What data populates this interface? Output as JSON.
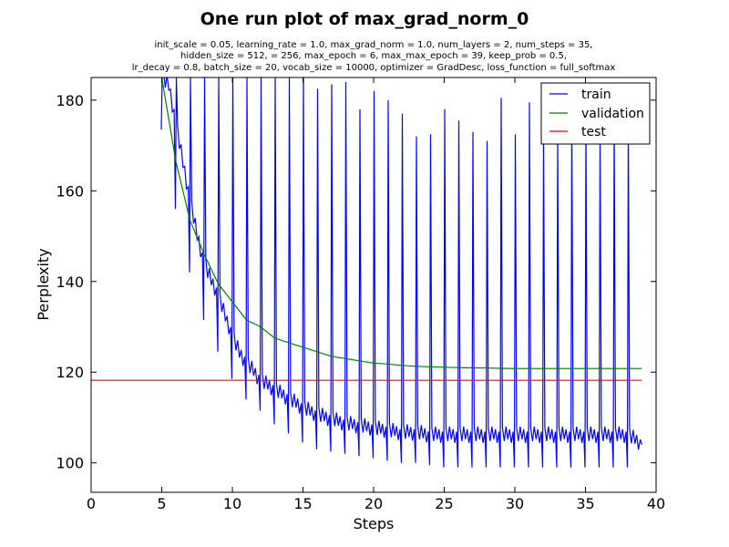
{
  "chart_data": {
    "type": "line",
    "title": "One run plot of max_grad_norm_0",
    "subtitle_lines": [
      "init_scale = 0.05, learning_rate = 1.0, max_grad_norm = 1.0, num_layers = 2, num_steps = 35,",
      "hidden_size = 512,    = 256, max_epoch = 6, max_max_epoch = 39, keep_prob = 0.5,",
      "lr_decay = 0.8, batch_size = 20, vocab_size = 10000, optimizer = GradDesc, loss_function = full_softmax"
    ],
    "xlabel": "Steps",
    "ylabel": "Perplexity",
    "xlim": [
      0,
      40
    ],
    "ylim": [
      93.5,
      185
    ],
    "xticks": [
      0,
      5,
      10,
      15,
      20,
      25,
      30,
      35,
      40
    ],
    "yticks": [
      100,
      120,
      140,
      160,
      180
    ],
    "grid": false,
    "legend_position": "top-right",
    "series": [
      {
        "name": "train",
        "color": "#0000ff",
        "epoch_spike_peaks": [
          [
            5,
            185
          ],
          [
            6,
            185
          ],
          [
            7,
            185
          ],
          [
            8,
            185
          ],
          [
            9,
            185
          ],
          [
            10,
            185
          ],
          [
            11,
            185
          ],
          [
            12,
            185
          ],
          [
            13,
            185
          ],
          [
            14,
            185
          ],
          [
            15,
            185
          ],
          [
            16,
            182.5
          ],
          [
            17,
            183.5
          ],
          [
            18,
            184
          ],
          [
            19,
            178
          ],
          [
            20,
            182
          ],
          [
            21,
            180
          ],
          [
            22,
            177
          ],
          [
            23,
            172
          ],
          [
            24,
            172.5
          ],
          [
            25,
            178
          ],
          [
            26,
            175.5
          ],
          [
            27,
            173
          ],
          [
            28,
            171
          ],
          [
            29,
            180.5
          ],
          [
            30,
            172.5
          ],
          [
            31,
            179.5
          ],
          [
            32,
            172.5
          ],
          [
            33,
            172
          ],
          [
            34,
            176
          ],
          [
            35,
            175
          ],
          [
            36,
            173.5
          ],
          [
            37,
            175.5
          ],
          [
            38,
            175
          ]
        ],
        "epoch_lows": [
          [
            5,
            173.5
          ],
          [
            6,
            156
          ],
          [
            7,
            142
          ],
          [
            8,
            131.5
          ],
          [
            9,
            124.5
          ],
          [
            10,
            118.5
          ],
          [
            11,
            114
          ],
          [
            12,
            111.5
          ],
          [
            13,
            108.5
          ],
          [
            14,
            106.5
          ],
          [
            15,
            104.5
          ],
          [
            16,
            103
          ],
          [
            17,
            102.5
          ],
          [
            18,
            102
          ],
          [
            19,
            101.5
          ],
          [
            20,
            101
          ],
          [
            21,
            100.5
          ],
          [
            22,
            100
          ],
          [
            23,
            100
          ],
          [
            24,
            99.5
          ],
          [
            25,
            99
          ],
          [
            26,
            99
          ],
          [
            27,
            99
          ],
          [
            28,
            99
          ],
          [
            29,
            99
          ],
          [
            30,
            99
          ],
          [
            31,
            99
          ],
          [
            32,
            99
          ],
          [
            33,
            99
          ],
          [
            34,
            99
          ],
          [
            35,
            99
          ],
          [
            36,
            99
          ],
          [
            37,
            99
          ],
          [
            38,
            99
          ]
        ],
        "baseline_points": [
          [
            5,
            185
          ],
          [
            5.5,
            183
          ],
          [
            6,
            175
          ],
          [
            6.5,
            166
          ],
          [
            7,
            158
          ],
          [
            7.5,
            150
          ],
          [
            8,
            144
          ],
          [
            8.5,
            140
          ],
          [
            9,
            137
          ],
          [
            9.5,
            132
          ],
          [
            10,
            128
          ],
          [
            10.5,
            124
          ],
          [
            11,
            122
          ],
          [
            11.5,
            120
          ],
          [
            12,
            118
          ],
          [
            12.5,
            117
          ],
          [
            13,
            116
          ],
          [
            13.5,
            115
          ],
          [
            14,
            114
          ],
          [
            14.5,
            113
          ],
          [
            15,
            112
          ],
          [
            16,
            110.5
          ],
          [
            17,
            109.5
          ],
          [
            18,
            108.5
          ],
          [
            19,
            108
          ],
          [
            20,
            107.5
          ],
          [
            21,
            107
          ],
          [
            22,
            106.5
          ],
          [
            23,
            106.5
          ],
          [
            24,
            106
          ],
          [
            25,
            106
          ],
          [
            26,
            106
          ],
          [
            27,
            106
          ],
          [
            28,
            106
          ],
          [
            29,
            106
          ],
          [
            30,
            106
          ],
          [
            31,
            106
          ],
          [
            32,
            106
          ],
          [
            33,
            106
          ],
          [
            34,
            106
          ],
          [
            35,
            106
          ],
          [
            36,
            106
          ],
          [
            37,
            106
          ],
          [
            38,
            106
          ],
          [
            39,
            104
          ]
        ]
      },
      {
        "name": "validation",
        "color": "#008000",
        "x": [
          5,
          6,
          7,
          8,
          9,
          10,
          11,
          12,
          13,
          14,
          15,
          16,
          17,
          18,
          19,
          20,
          21,
          22,
          23,
          24,
          25,
          26,
          27,
          28,
          29,
          30,
          31,
          32,
          33,
          34,
          35,
          36,
          37,
          38,
          39
        ],
        "values": [
          185,
          166.5,
          153.5,
          146,
          139.5,
          135.5,
          131.5,
          130,
          127.5,
          126.5,
          125.5,
          124.5,
          123.5,
          123,
          122.5,
          122,
          121.8,
          121.5,
          121.3,
          121.2,
          121.1,
          121,
          120.95,
          120.9,
          120.85,
          120.8,
          120.8,
          120.8,
          120.8,
          120.8,
          120.8,
          120.8,
          120.8,
          120.8,
          120.8
        ]
      },
      {
        "name": "test",
        "color": "#ff0000",
        "x": [
          0,
          39
        ],
        "values": [
          118.2,
          118.2
        ]
      }
    ]
  }
}
